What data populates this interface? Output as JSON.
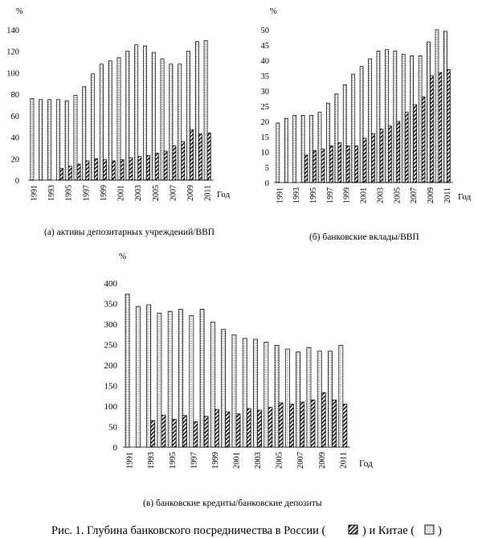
{
  "figure_caption": "Рис. 1. Глубина банковского посредничества в России (",
  "caption_mid": ") и Китае (",
  "caption_end": ")",
  "legend_russia_icon": "diagonal-hatch-swatch",
  "legend_china_icon": "dotted-swatch",
  "chart_data": [
    {
      "type": "bar",
      "title": "(а) активы депозитарных учреждений/ВВП",
      "ylabel": "%",
      "xlabel": "Год",
      "ylim": [
        0,
        140
      ],
      "yticks": [
        "0",
        "20",
        "40",
        "60",
        "80",
        "100",
        "120",
        "140"
      ],
      "x": [
        1991,
        1992,
        1993,
        1994,
        1995,
        1996,
        1997,
        1998,
        1999,
        2000,
        2001,
        2002,
        2003,
        2004,
        2005,
        2006,
        2007,
        2008,
        2009,
        2010,
        2011
      ],
      "xtick_labels": [
        "1991",
        "1993",
        "1995",
        "1997",
        "1999",
        "2001",
        "2003",
        "2005",
        "2007",
        "2009",
        "2011"
      ],
      "series": [
        {
          "name": "Китай",
          "pattern": "dotted",
          "values": [
            76,
            75,
            75,
            75,
            74,
            79,
            87,
            99,
            108,
            111,
            114,
            120,
            126,
            125,
            119,
            113,
            108,
            108,
            120,
            129,
            130
          ]
        },
        {
          "name": "Россия",
          "pattern": "hatch",
          "values": [
            null,
            null,
            null,
            11,
            13,
            15,
            18,
            20,
            19,
            18,
            19,
            21,
            22,
            23,
            25,
            27,
            32,
            36,
            47,
            43,
            44
          ]
        }
      ]
    },
    {
      "type": "bar",
      "title": "(б) банковские вклады/ВВП",
      "ylabel": "%",
      "xlabel": "Год",
      "ylim": [
        0,
        50
      ],
      "yticks": [
        "0",
        "5",
        "10",
        "15",
        "20",
        "25",
        "30",
        "35",
        "40",
        "45",
        "50"
      ],
      "x": [
        1991,
        1992,
        1993,
        1994,
        1995,
        1996,
        1997,
        1998,
        1999,
        2000,
        2001,
        2002,
        2003,
        2004,
        2005,
        2006,
        2007,
        2008,
        2009,
        2010,
        2011
      ],
      "xtick_labels": [
        "1991",
        "1993",
        "1995",
        "1997",
        "1999",
        "2001",
        "2003",
        "2005",
        "2007",
        "2009",
        "2011"
      ],
      "series": [
        {
          "name": "Китай",
          "pattern": "dotted",
          "values": [
            19.5,
            21,
            22,
            22,
            22,
            23,
            26,
            29,
            32,
            35.5,
            38,
            40.5,
            43,
            43.5,
            43,
            42,
            41.5,
            41.5,
            46,
            50,
            49.5
          ]
        },
        {
          "name": "Россия",
          "pattern": "hatch",
          "values": [
            null,
            null,
            null,
            9,
            10.5,
            11,
            12,
            13,
            12,
            12,
            14.5,
            16,
            17.5,
            18.5,
            20,
            23,
            25.5,
            28,
            35,
            36,
            37
          ]
        }
      ]
    },
    {
      "type": "bar",
      "title": "(в) банковские кредиты/банковские депозиты",
      "ylabel": "%",
      "xlabel": "Год",
      "ylim": [
        0,
        400
      ],
      "yticks": [
        "0",
        "50",
        "100",
        "150",
        "200",
        "250",
        "300",
        "350",
        "400"
      ],
      "x": [
        1991,
        1992,
        1993,
        1994,
        1995,
        1996,
        1997,
        1998,
        1999,
        2000,
        2001,
        2002,
        2003,
        2004,
        2005,
        2006,
        2007,
        2008,
        2009,
        2010,
        2011
      ],
      "xtick_labels": [
        "1991",
        "1993",
        "1995",
        "1997",
        "1999",
        "2001",
        "2003",
        "2005",
        "2007",
        "2009",
        "2011"
      ],
      "series": [
        {
          "name": "Китай",
          "pattern": "dotted",
          "values": [
            373,
            343,
            347,
            327,
            331,
            336,
            321,
            336,
            305,
            287,
            274,
            265,
            263,
            256,
            248,
            239,
            232,
            243,
            234,
            234,
            248
          ]
        },
        {
          "name": "Россия",
          "pattern": "hatch",
          "values": [
            null,
            null,
            65,
            78,
            68,
            77,
            62,
            75,
            92,
            86,
            81,
            94,
            90,
            97,
            108,
            105,
            110,
            115,
            133,
            115,
            105
          ]
        }
      ]
    }
  ]
}
